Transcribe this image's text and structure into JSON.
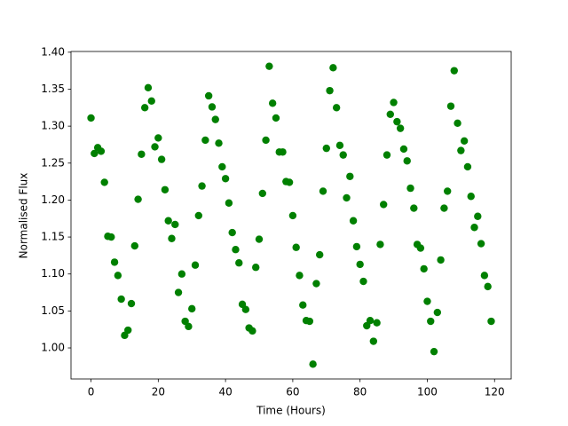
{
  "chart_data": {
    "type": "scatter",
    "xlabel": "Time (Hours)",
    "ylabel": "Normalised Flux",
    "x": [
      0,
      1,
      2,
      3,
      4,
      5,
      6,
      7,
      8,
      9,
      10,
      11,
      12,
      13,
      14,
      15,
      16,
      17,
      18,
      19,
      20,
      21,
      22,
      23,
      24,
      25,
      26,
      27,
      28,
      29,
      30,
      31,
      32,
      33,
      34,
      35,
      36,
      37,
      38,
      39,
      40,
      41,
      42,
      43,
      44,
      45,
      46,
      47,
      48,
      49,
      50,
      51,
      52,
      53,
      54,
      55,
      56,
      57,
      58,
      59,
      60,
      61,
      62,
      63,
      64,
      65,
      66,
      67,
      68,
      69,
      70,
      71,
      72,
      73,
      74,
      75,
      76,
      77,
      78,
      79,
      80,
      81,
      82,
      83,
      84,
      85,
      86,
      87,
      88,
      89,
      90,
      91,
      92,
      93,
      94,
      95,
      96,
      97,
      98,
      99,
      100,
      101,
      102,
      103,
      104,
      105,
      106,
      107,
      108,
      109,
      110,
      111,
      112,
      113,
      114,
      115,
      116,
      117,
      118,
      119
    ],
    "series": [
      {
        "color": "#008000",
        "values": [
          1.311,
          1.263,
          1.271,
          1.266,
          1.224,
          1.151,
          1.15,
          1.116,
          1.098,
          1.066,
          1.017,
          1.024,
          1.06,
          1.138,
          1.201,
          1.262,
          1.325,
          1.352,
          1.334,
          1.272,
          1.284,
          1.255,
          1.214,
          1.172,
          1.148,
          1.167,
          1.075,
          1.1,
          1.036,
          1.029,
          1.053,
          1.112,
          1.179,
          1.219,
          1.281,
          1.341,
          1.326,
          1.309,
          1.277,
          1.245,
          1.229,
          1.196,
          1.156,
          1.133,
          1.115,
          1.059,
          1.052,
          1.027,
          1.023,
          1.109,
          1.147,
          1.209,
          1.281,
          1.381,
          1.331,
          1.311,
          1.265,
          1.265,
          1.225,
          1.224,
          1.179,
          1.136,
          1.098,
          1.058,
          1.037,
          1.036,
          0.978,
          1.087,
          1.126,
          1.212,
          1.27,
          1.348,
          1.379,
          1.325,
          1.274,
          1.261,
          1.203,
          1.232,
          1.172,
          1.137,
          1.113,
          1.09,
          1.03,
          1.037,
          1.009,
          1.034,
          1.14,
          1.194,
          1.261,
          1.316,
          1.332,
          1.306,
          1.297,
          1.269,
          1.253,
          1.216,
          1.189,
          1.14,
          1.135,
          1.107,
          1.063,
          1.036,
          0.995,
          1.048,
          1.119,
          1.189,
          1.212,
          1.327,
          1.375,
          1.304,
          1.267,
          1.28,
          1.245,
          1.205,
          1.163,
          1.178,
          1.141,
          1.098,
          1.083,
          1.036
        ]
      }
    ],
    "xlim": [
      -5.95,
      124.95
    ],
    "ylim": [
      0.958,
      1.401
    ],
    "xticks": [
      0,
      20,
      40,
      60,
      80,
      100,
      120
    ],
    "yticks": [
      {
        "value": 1.0,
        "label": "1.00"
      },
      {
        "value": 1.05,
        "label": "1.05"
      },
      {
        "value": 1.1,
        "label": "1.10"
      },
      {
        "value": 1.15,
        "label": "1.15"
      },
      {
        "value": 1.2,
        "label": "1.20"
      },
      {
        "value": 1.25,
        "label": "1.25"
      },
      {
        "value": 1.3,
        "label": "1.30"
      },
      {
        "value": 1.35,
        "label": "1.35"
      },
      {
        "value": 1.4,
        "label": "1.40"
      }
    ],
    "grid": false
  }
}
